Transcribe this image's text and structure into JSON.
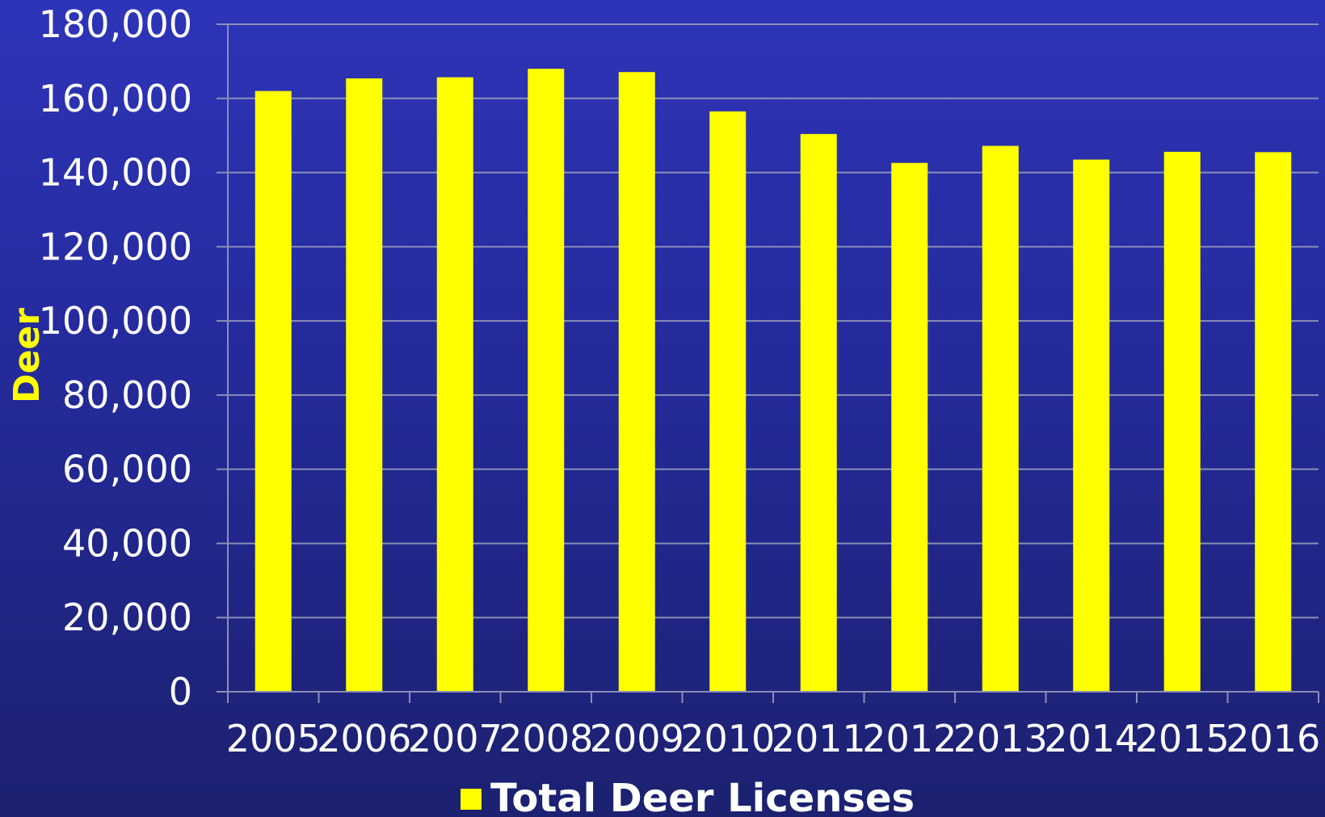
{
  "chart_data": {
    "type": "bar",
    "title": "",
    "xlabel": "",
    "ylabel": "Deer",
    "categories": [
      "2005",
      "2006",
      "2007",
      "2008",
      "2009",
      "2010",
      "2011",
      "2012",
      "2013",
      "2014",
      "2015",
      "2016"
    ],
    "series": [
      {
        "name": "Total Deer Licenses",
        "values": [
          162000,
          165400,
          165700,
          168000,
          167100,
          156500,
          150400,
          142600,
          147200,
          143500,
          145600,
          145500
        ]
      }
    ],
    "ylim": [
      0,
      180000
    ],
    "yticks": [
      "0",
      "20,000",
      "40,000",
      "60,000",
      "80,000",
      "100,000",
      "120,000",
      "140,000",
      "160,000",
      "180,000"
    ],
    "grid": true,
    "legend_position": "bottom",
    "colors": {
      "bar": "#ffff00",
      "grid": "#8a8fb8",
      "tick_text": "#ffffff",
      "ylabel_text": "#ffff00"
    }
  }
}
